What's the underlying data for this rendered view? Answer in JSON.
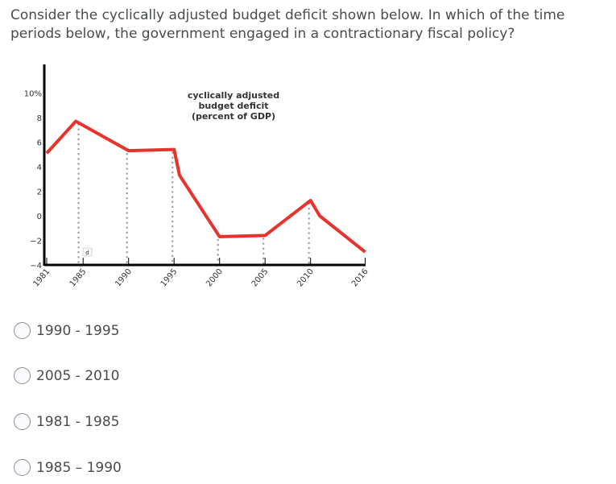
{
  "question": "Consider the cyclically adjusted budget deficit shown below. In which of the time periods below, the government engaged in a contractionary fiscal policy?",
  "chart_data": {
    "type": "line",
    "annotation": [
      "cyclically adjusted",
      "budget deficit",
      "(percent of GDP)"
    ],
    "y_ticks": [
      "10%",
      "8",
      "6",
      "4",
      "2",
      "0",
      "−2",
      "−4"
    ],
    "y_tick_values": [
      10,
      8,
      6,
      4,
      2,
      0,
      -2,
      -4
    ],
    "x_ticks": [
      "1981",
      "1985",
      "1990",
      "1995",
      "2000",
      "2005",
      "2010",
      "2016"
    ],
    "x_tick_values": [
      1981,
      1985,
      1990,
      1995,
      2000,
      2005,
      2010,
      2016
    ],
    "xlim": [
      1981,
      2016
    ],
    "ylim": [
      -4,
      10
    ],
    "dotted_reference_years": [
      1985,
      1990,
      1995,
      2000,
      2005,
      2010
    ],
    "marker_label": "d",
    "series": [
      {
        "color": "#e8322c",
        "x": [
          1981,
          1984.2,
          1990,
          1995,
          1995.6,
          2000,
          2005,
          2010,
          2011,
          2016
        ],
        "y": [
          5.1,
          7.7,
          5.3,
          5.4,
          3.3,
          -1.7,
          -1.6,
          1.25,
          0,
          -2.95
        ]
      }
    ],
    "grid": false
  },
  "options": [
    {
      "label": "1990 - 1995"
    },
    {
      "label": "2005 - 2010"
    },
    {
      "label": "1981 - 1985"
    },
    {
      "label": "1985 – 1990"
    }
  ]
}
